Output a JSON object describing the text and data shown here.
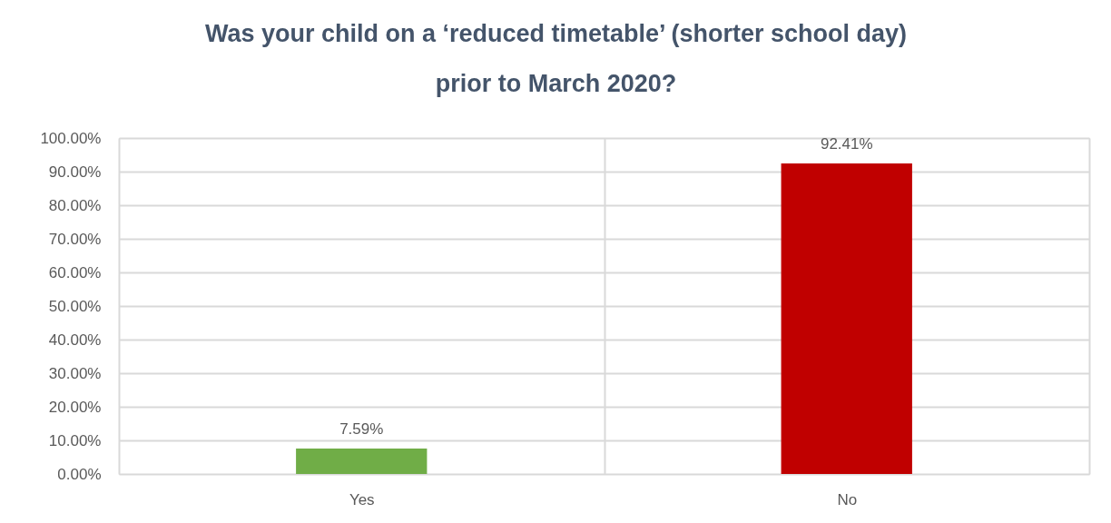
{
  "chart_data": {
    "type": "bar",
    "title": "Was your child on a ‘reduced timetable’ (shorter school day) prior to March 2020?",
    "categories": [
      "Yes",
      "No"
    ],
    "values": [
      7.59,
      92.41
    ],
    "colors": [
      "#70ad47",
      "#c00000"
    ],
    "value_labels": [
      "7.59%",
      "92.41%"
    ],
    "ylim": [
      0,
      100
    ],
    "yticks": [
      {
        "value": 0,
        "label": "0.00%"
      },
      {
        "value": 10,
        "label": "10.00%"
      },
      {
        "value": 20,
        "label": "20.00%"
      },
      {
        "value": 30,
        "label": "30.00%"
      },
      {
        "value": 40,
        "label": "40.00%"
      },
      {
        "value": 50,
        "label": "50.00%"
      },
      {
        "value": 60,
        "label": "60.00%"
      },
      {
        "value": 70,
        "label": "70.00%"
      },
      {
        "value": 80,
        "label": "80.00%"
      },
      {
        "value": 90,
        "label": "90.00%"
      },
      {
        "value": 100,
        "label": "100.00%"
      }
    ],
    "grid": true
  }
}
